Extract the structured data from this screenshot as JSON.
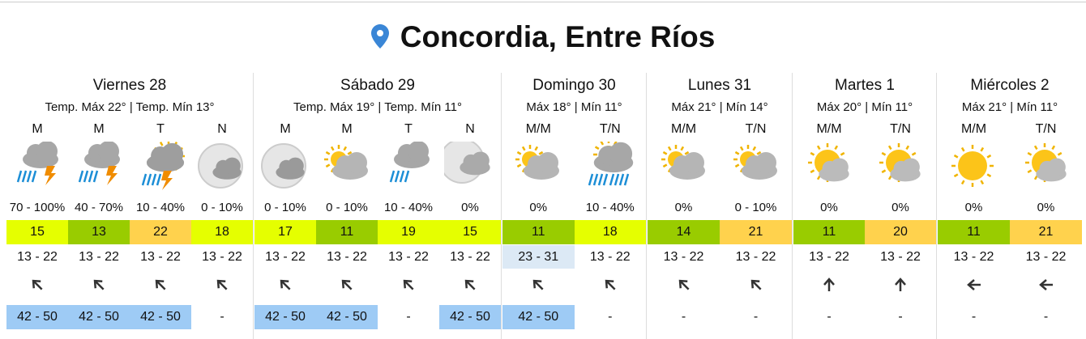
{
  "title": "Concordia, Entre Ríos",
  "days": [
    {
      "name": "Viernes 28",
      "summary": "Temp. Máx 22° | Temp. Mín 13°",
      "periods": [
        {
          "label": "M",
          "probability": "70 - 100%",
          "value": 15,
          "color": "#e5ff00",
          "range": "13 - 22",
          "gust": "42 - 50",
          "gust_color": "#9ecbf5"
        },
        {
          "label": "M",
          "probability": "40 - 70%",
          "value": 13,
          "color": "#99cc00",
          "range": "13 - 22",
          "gust": "42 - 50",
          "gust_color": "#9ecbf5"
        },
        {
          "label": "T",
          "probability": "10 - 40%",
          "value": 22,
          "color": "#ffd24d",
          "range": "13 - 22",
          "gust": "42 - 50",
          "gust_color": "#9ecbf5"
        },
        {
          "label": "N",
          "probability": "0 - 10%",
          "value": 18,
          "color": "#e5ff00",
          "range": "13 - 22",
          "gust": "-"
        }
      ]
    },
    {
      "name": "Sábado 29",
      "summary": "Temp. Máx 19° | Temp. Mín 11°",
      "periods": [
        {
          "label": "M",
          "probability": "0 - 10%",
          "value": 17,
          "color": "#e5ff00",
          "range": "13 - 22",
          "gust": "42 - 50",
          "gust_color": "#9ecbf5"
        },
        {
          "label": "M",
          "probability": "0 - 10%",
          "value": 11,
          "color": "#99cc00",
          "range": "13 - 22",
          "gust": "42 - 50",
          "gust_color": "#9ecbf5"
        },
        {
          "label": "T",
          "probability": "10 - 40%",
          "value": 19,
          "color": "#e5ff00",
          "range": "13 - 22",
          "gust": "-"
        },
        {
          "label": "N",
          "probability": "0%",
          "value": 15,
          "color": "#e5ff00",
          "range": "13 - 22",
          "gust": "42 - 50",
          "gust_color": "#9ecbf5"
        }
      ]
    },
    {
      "name": "Domingo 30",
      "summary": "Máx 18° | Mín 11°",
      "periods": [
        {
          "label": "M/M",
          "probability": "0%",
          "value": 11,
          "color": "#99cc00",
          "range": "23 - 31",
          "range_color": "#dce9f5",
          "gust": "42 - 50",
          "gust_color": "#9ecbf5"
        },
        {
          "label": "T/N",
          "probability": "10 - 40%",
          "value": 18,
          "color": "#e5ff00",
          "range": "13 - 22",
          "gust": "-"
        }
      ]
    },
    {
      "name": "Lunes 31",
      "summary": "Máx 21° | Mín 14°",
      "periods": [
        {
          "label": "M/M",
          "probability": "0%",
          "value": 14,
          "color": "#99cc00",
          "range": "13 - 22",
          "gust": "-"
        },
        {
          "label": "T/N",
          "probability": "0 - 10%",
          "value": 21,
          "color": "#ffd24d",
          "range": "13 - 22",
          "gust": "-"
        }
      ]
    },
    {
      "name": "Martes 1",
      "summary": "Máx 20° | Mín 11°",
      "periods": [
        {
          "label": "M/M",
          "probability": "0%",
          "value": 11,
          "color": "#99cc00",
          "range": "13 - 22",
          "gust": "-"
        },
        {
          "label": "T/N",
          "probability": "0%",
          "value": 20,
          "color": "#ffd24d",
          "range": "13 - 22",
          "gust": "-"
        }
      ]
    },
    {
      "name": "Miércoles 2",
      "summary": "Máx 21° | Mín 11°",
      "periods": [
        {
          "label": "M/M",
          "probability": "0%",
          "value": 11,
          "color": "#99cc00",
          "range": "13 - 22",
          "gust": "-"
        },
        {
          "label": "T/N",
          "probability": "0%",
          "value": 21,
          "color": "#ffd24d",
          "range": "13 - 22",
          "gust": "-"
        }
      ]
    }
  ]
}
